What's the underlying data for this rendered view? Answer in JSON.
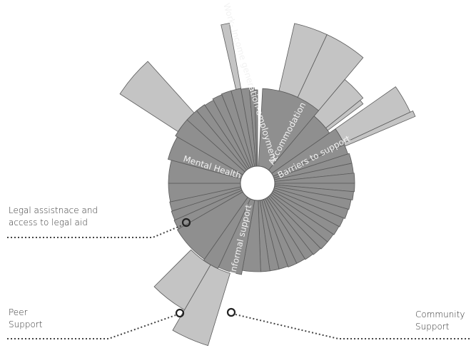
{
  "colors": {
    "inner": "#8f8f8f",
    "outer": "#c4c4c4",
    "stroke": "#5a5a5a",
    "label_text": "#f2f2f2",
    "callout_text": "#333333"
  },
  "segment_labels": [
    {
      "id": "employment",
      "text": "Work- Income generation-employment"
    },
    {
      "id": "accommodation",
      "text": "Accommodation"
    },
    {
      "id": "barriers",
      "text": "Barriers to support"
    },
    {
      "id": "mental-health",
      "text": "Mental Health"
    },
    {
      "id": "informal",
      "text": "Informal support"
    }
  ],
  "callouts": {
    "legal": {
      "line1": "Legal assistnace and",
      "line2": "access to legal aid"
    },
    "peer": {
      "line1": "Peer",
      "line2": "Support"
    },
    "community": {
      "line1": "Community",
      "line2": "Support"
    }
  }
}
